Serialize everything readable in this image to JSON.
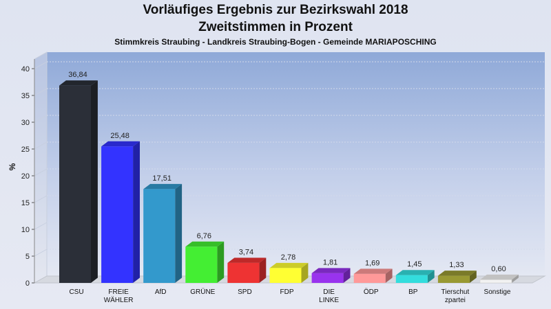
{
  "chart_data": {
    "type": "bar",
    "title": "Vorläufiges Ergebnis zur Bezirkswahl 2018",
    "subtitle": "Zweitstimmen in Prozent",
    "subsubtitle": "Stimmkreis Straubing - Landkreis Straubing-Bogen - Gemeinde MARIAPOSCHING",
    "ylabel": "%",
    "ylim": [
      0,
      40
    ],
    "yticks": [
      0,
      5,
      10,
      15,
      20,
      25,
      30,
      35,
      40
    ],
    "grid": true,
    "categories": [
      [
        "CSU"
      ],
      [
        "FREIE",
        "WÄHLER"
      ],
      [
        "AfD"
      ],
      [
        "GRÜNE"
      ],
      [
        "SPD"
      ],
      [
        "FDP"
      ],
      [
        "DIE",
        "LINKE"
      ],
      [
        "ÖDP"
      ],
      [
        "BP"
      ],
      [
        "Tierschut",
        "zpartei"
      ],
      [
        "Sonstige"
      ]
    ],
    "values": [
      36.84,
      25.48,
      17.51,
      6.76,
      3.74,
      2.78,
      1.81,
      1.69,
      1.45,
      1.33,
      0.6
    ],
    "value_labels": [
      "36,84",
      "25,48",
      "17,51",
      "6,76",
      "3,74",
      "2,78",
      "1,81",
      "1,69",
      "1,45",
      "1,33",
      "0,60"
    ],
    "colors": [
      "#2b2f38",
      "#3333ff",
      "#3399cc",
      "#44ee33",
      "#ee3333",
      "#ffff33",
      "#9933ee",
      "#ff9999",
      "#33dddd",
      "#999933",
      "#f2f2f2"
    ]
  }
}
